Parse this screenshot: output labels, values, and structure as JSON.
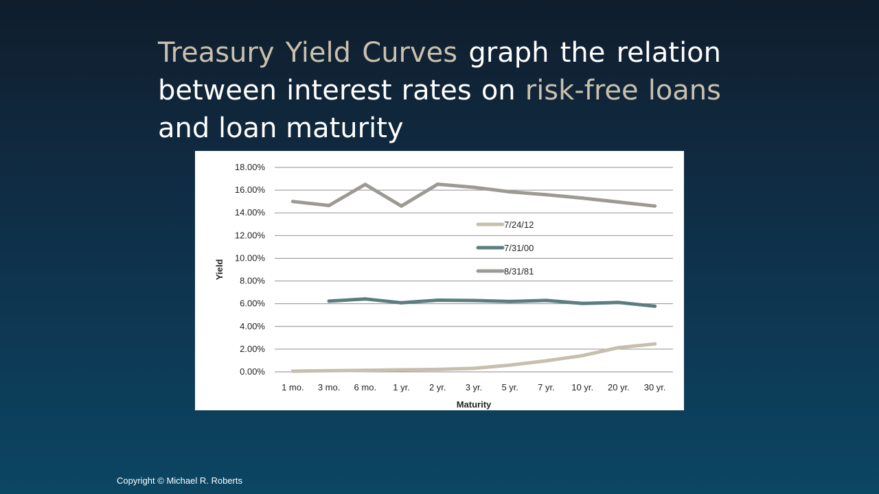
{
  "slide": {
    "title_parts": [
      {
        "text": "Treasury Yield Curves",
        "highlight": true
      },
      {
        "text": " graph the relation between interest rates on ",
        "highlight": false
      },
      {
        "text": "risk-free loans",
        "highlight": true
      },
      {
        "text": " and loan maturity",
        "highlight": false
      }
    ],
    "copyright": "Copyright © Michael R. Roberts",
    "colors": {
      "highlight": "#c9c1ae",
      "text": "#ffffff"
    }
  },
  "chart_data": {
    "type": "line",
    "xlabel": "Maturity",
    "ylabel": "Yield",
    "ylim": [
      0,
      18
    ],
    "yticks": [
      "0.00%",
      "2.00%",
      "4.00%",
      "6.00%",
      "8.00%",
      "10.00%",
      "12.00%",
      "14.00%",
      "16.00%",
      "18.00%"
    ],
    "categories": [
      "1 mo.",
      "3 mo.",
      "6 mo.",
      "1 yr.",
      "2 yr.",
      "3 yr.",
      "5 yr.",
      "7 yr.",
      "10 yr.",
      "20 yr.",
      "30 yr."
    ],
    "grid": true,
    "legend": "right",
    "series": [
      {
        "name": "7/24/12",
        "color": "#c6bfae",
        "values": [
          0.06,
          0.1,
          0.14,
          0.18,
          0.22,
          0.31,
          0.6,
          0.97,
          1.43,
          2.14,
          2.46
        ]
      },
      {
        "name": "7/31/00",
        "color": "#5c7d80",
        "values": [
          null,
          6.23,
          6.42,
          6.08,
          6.31,
          6.28,
          6.2,
          6.29,
          6.03,
          6.11,
          5.78
        ]
      },
      {
        "name": "8/31/81",
        "color": "#9d9a95",
        "values": [
          15.0,
          14.65,
          16.5,
          14.6,
          16.52,
          16.25,
          15.85,
          15.6,
          15.3,
          14.95,
          14.6
        ]
      }
    ]
  }
}
